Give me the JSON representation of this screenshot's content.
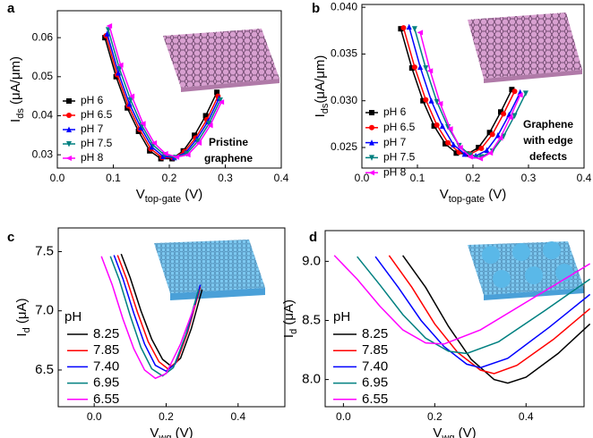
{
  "chart_data": [
    {
      "type": "line",
      "label": "a",
      "markers": true,
      "legend": "lower left",
      "xlim": [
        0,
        0.4
      ],
      "xticks": [
        {
          "value": 0,
          "label": "0.0"
        },
        0.1,
        0.2,
        0.3,
        0.4
      ],
      "ylim": [
        0.0266,
        0.0669
      ],
      "yticks": [
        0.03,
        0.04,
        0.05,
        0.06
      ],
      "xlabel": {
        "text": "V",
        "sub": "top-gate",
        "unit": " (V)"
      },
      "ylabel": {
        "text": "I",
        "sub": "ds",
        "unit": " (μA/μm)"
      },
      "annotations": [
        "Pristine",
        "graphene"
      ],
      "series": [
        {
          "name": "pH 6",
          "color": "#000000",
          "marker": "square",
          "x": [
            0.085,
            0.105,
            0.125,
            0.145,
            0.165,
            0.185,
            0.205,
            0.225,
            0.245,
            0.265,
            0.285
          ],
          "values": [
            0.06,
            0.05,
            0.042,
            0.036,
            0.031,
            0.029,
            0.029,
            0.031,
            0.035,
            0.04,
            0.046
          ]
        },
        {
          "name": "pH 6.5",
          "color": "#ff0000",
          "marker": "circle",
          "x": [
            0.087,
            0.107,
            0.127,
            0.147,
            0.167,
            0.187,
            0.207,
            0.227,
            0.247,
            0.267,
            0.287
          ],
          "values": [
            0.0605,
            0.0505,
            0.0425,
            0.0365,
            0.0315,
            0.0293,
            0.0292,
            0.0308,
            0.0343,
            0.039,
            0.045
          ]
        },
        {
          "name": "pH 7",
          "color": "#0000ff",
          "marker": "up",
          "x": [
            0.089,
            0.109,
            0.129,
            0.149,
            0.169,
            0.189,
            0.209,
            0.229,
            0.249,
            0.269,
            0.289
          ],
          "values": [
            0.061,
            0.051,
            0.043,
            0.037,
            0.032,
            0.0296,
            0.0293,
            0.0305,
            0.034,
            0.0385,
            0.0445
          ]
        },
        {
          "name": "pH 7.5",
          "color": "#008080",
          "marker": "down",
          "x": [
            0.091,
            0.111,
            0.131,
            0.151,
            0.171,
            0.191,
            0.211,
            0.231,
            0.251,
            0.271,
            0.291
          ],
          "values": [
            0.062,
            0.052,
            0.044,
            0.0375,
            0.0325,
            0.03,
            0.0293,
            0.0303,
            0.0335,
            0.038,
            0.044
          ]
        },
        {
          "name": "pH 8",
          "color": "#ff00ff",
          "marker": "left",
          "x": [
            0.093,
            0.113,
            0.133,
            0.153,
            0.173,
            0.193,
            0.213,
            0.233,
            0.253,
            0.273,
            0.293
          ],
          "values": [
            0.063,
            0.053,
            0.045,
            0.038,
            0.033,
            0.0303,
            0.0294,
            0.03,
            0.033,
            0.0375,
            0.0435
          ]
        }
      ]
    },
    {
      "type": "line",
      "label": "b",
      "markers": true,
      "legend": "lower left",
      "xlim": [
        0,
        0.4
      ],
      "xticks": [
        {
          "value": 0,
          "label": "0.0"
        },
        0.1,
        0.2,
        0.3,
        0.4
      ],
      "ylim": [
        0.0228,
        0.0403
      ],
      "yticks": [
        0.025,
        {
          "value": 0.03,
          "label": "0.030"
        },
        0.035,
        {
          "value": 0.04,
          "label": "0.040"
        }
      ],
      "xlabel": {
        "text": "V",
        "sub": "top-gate",
        "unit": " (V)"
      },
      "ylabel": {
        "text": "I",
        "sub": "ds",
        "unit": "(μA/μm)"
      },
      "annotations": [
        "Graphene",
        "with edge",
        "defects"
      ],
      "series": [
        {
          "name": "pH 6",
          "color": "#000000",
          "marker": "square",
          "x": [
            0.07,
            0.09,
            0.11,
            0.13,
            0.15,
            0.17,
            0.19,
            0.21,
            0.23,
            0.25,
            0.27
          ],
          "values": [
            0.0377,
            0.0335,
            0.03,
            0.0273,
            0.0254,
            0.0244,
            0.0243,
            0.025,
            0.0266,
            0.0288,
            0.0312
          ]
        },
        {
          "name": "pH 6.5",
          "color": "#ff0000",
          "marker": "circle",
          "x": [
            0.075,
            0.095,
            0.115,
            0.135,
            0.155,
            0.175,
            0.195,
            0.215,
            0.235,
            0.255,
            0.275
          ],
          "values": [
            0.0378,
            0.0336,
            0.0301,
            0.0274,
            0.0255,
            0.0245,
            0.0243,
            0.0249,
            0.0264,
            0.0286,
            0.031
          ]
        },
        {
          "name": "pH 7",
          "color": "#0000ff",
          "marker": "up",
          "x": [
            0.085,
            0.105,
            0.125,
            0.145,
            0.165,
            0.185,
            0.205,
            0.225,
            0.245,
            0.265,
            0.285
          ],
          "values": [
            0.0379,
            0.0336,
            0.03,
            0.0273,
            0.0253,
            0.0243,
            0.0241,
            0.0247,
            0.0263,
            0.0285,
            0.0309
          ]
        },
        {
          "name": "pH 7.5",
          "color": "#008080",
          "marker": "down",
          "x": [
            0.095,
            0.115,
            0.135,
            0.155,
            0.175,
            0.195,
            0.215,
            0.235,
            0.255,
            0.275,
            0.295
          ],
          "values": [
            0.0377,
            0.0335,
            0.0299,
            0.0272,
            0.0252,
            0.0242,
            0.024,
            0.0246,
            0.0262,
            0.0284,
            0.0308
          ]
        },
        {
          "name": "pH 8",
          "color": "#ff00ff",
          "marker": "left",
          "x": [
            0.105,
            0.123,
            0.141,
            0.159,
            0.177,
            0.195,
            0.213,
            0.231,
            0.249,
            0.267,
            0.285
          ],
          "values": [
            0.0373,
            0.0332,
            0.0297,
            0.027,
            0.025,
            0.024,
            0.0238,
            0.0244,
            0.026,
            0.0282,
            0.0306
          ]
        }
      ]
    },
    {
      "type": "line",
      "label": "c",
      "markers": false,
      "legend": "lower left",
      "legend_title": "pH",
      "xlim": [
        -0.1,
        0.53
      ],
      "xticks": [
        {
          "value": 0,
          "label": "0.0"
        },
        0.2,
        0.4
      ],
      "ylim": [
        6.19,
        7.7
      ],
      "yticks": [
        6.5,
        {
          "value": 7,
          "label": "7.0"
        },
        7.5
      ],
      "xlabel": {
        "text": "V",
        "sub": "wg",
        "unit": " (V)"
      },
      "ylabel": {
        "text": "I",
        "sub": "d",
        "unit": " (μA)"
      },
      "series": [
        {
          "name": "8.25",
          "color": "#000000",
          "x": [
            0.075,
            0.1,
            0.13,
            0.16,
            0.19,
            0.215,
            0.24,
            0.27,
            0.3
          ],
          "values": [
            7.48,
            7.28,
            7.0,
            6.76,
            6.59,
            6.53,
            6.6,
            6.85,
            7.18
          ]
        },
        {
          "name": "7.85",
          "color": "#ff0000",
          "x": [
            0.065,
            0.09,
            0.12,
            0.15,
            0.18,
            0.205,
            0.23,
            0.26,
            0.295
          ],
          "values": [
            7.47,
            7.27,
            6.99,
            6.74,
            6.57,
            6.51,
            6.57,
            6.82,
            7.2
          ]
        },
        {
          "name": "7.40",
          "color": "#0000ff",
          "x": [
            0.055,
            0.08,
            0.11,
            0.14,
            0.17,
            0.2,
            0.225,
            0.26,
            0.295
          ],
          "values": [
            7.47,
            7.27,
            6.98,
            6.72,
            6.54,
            6.49,
            6.55,
            6.84,
            7.22
          ]
        },
        {
          "name": "6.95",
          "color": "#008080",
          "x": [
            0.045,
            0.07,
            0.1,
            0.13,
            0.16,
            0.19,
            0.22,
            0.255,
            0.29
          ],
          "values": [
            7.46,
            7.26,
            6.96,
            6.69,
            6.51,
            6.45,
            6.52,
            6.8,
            7.18
          ]
        },
        {
          "name": "6.55",
          "color": "#ff00ff",
          "x": [
            0.02,
            0.05,
            0.08,
            0.11,
            0.14,
            0.17,
            0.2,
            0.24,
            0.28
          ],
          "values": [
            7.46,
            7.22,
            6.93,
            6.68,
            6.5,
            6.43,
            6.47,
            6.72,
            7.05
          ]
        }
      ]
    },
    {
      "type": "line",
      "label": "d",
      "markers": false,
      "legend": "lower left",
      "legend_title": "pH",
      "xlim": [
        -0.04,
        0.527
      ],
      "xticks": [
        {
          "value": 0,
          "label": "0.0"
        },
        0.2,
        0.4
      ],
      "ylim": [
        7.77,
        9.26
      ],
      "yticks": [
        {
          "value": 8,
          "label": "8.0"
        },
        8.5,
        {
          "value": 9,
          "label": "9.0"
        }
      ],
      "xlabel": {
        "text": "V",
        "sub": "wg",
        "unit": " (V)"
      },
      "ylabel": {
        "text": "I",
        "sub": "d",
        "unit": " (μA)"
      },
      "series": [
        {
          "name": "8.25",
          "color": "#000000",
          "x": [
            0.13,
            0.18,
            0.23,
            0.28,
            0.33,
            0.36,
            0.4,
            0.47,
            0.54
          ],
          "values": [
            9.05,
            8.78,
            8.45,
            8.17,
            8.0,
            7.97,
            8.02,
            8.22,
            8.47
          ]
        },
        {
          "name": "7.85",
          "color": "#ff0000",
          "x": [
            0.1,
            0.15,
            0.2,
            0.25,
            0.3,
            0.33,
            0.38,
            0.46,
            0.54
          ],
          "values": [
            9.05,
            8.78,
            8.47,
            8.23,
            8.08,
            8.05,
            8.12,
            8.34,
            8.6
          ]
        },
        {
          "name": "7.40",
          "color": "#0000ff",
          "x": [
            0.07,
            0.12,
            0.17,
            0.22,
            0.27,
            0.3,
            0.36,
            0.45,
            0.54
          ],
          "values": [
            9.04,
            8.78,
            8.5,
            8.28,
            8.13,
            8.1,
            8.18,
            8.44,
            8.72
          ]
        },
        {
          "name": "6.95",
          "color": "#008080",
          "x": [
            0.03,
            0.08,
            0.13,
            0.18,
            0.23,
            0.27,
            0.34,
            0.44,
            0.54
          ],
          "values": [
            9.04,
            8.8,
            8.55,
            8.35,
            8.24,
            8.22,
            8.32,
            8.58,
            8.85
          ]
        },
        {
          "name": "6.55",
          "color": "#ff00ff",
          "x": [
            -0.02,
            0.03,
            0.08,
            0.13,
            0.18,
            0.22,
            0.3,
            0.42,
            0.54
          ],
          "values": [
            9.05,
            8.85,
            8.62,
            8.42,
            8.31,
            8.3,
            8.42,
            8.7,
            8.98
          ]
        }
      ]
    }
  ]
}
